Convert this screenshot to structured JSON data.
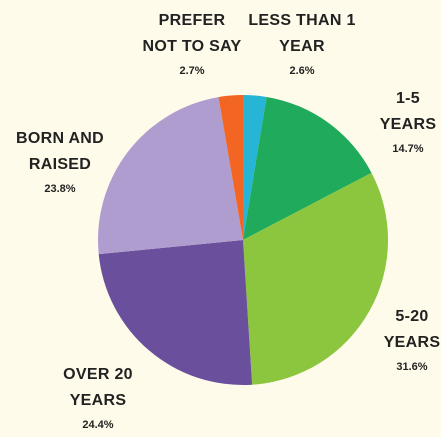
{
  "chart_data": {
    "type": "pie",
    "categories": [
      "LESS THAN 1 YEAR",
      "1-5 YEARS",
      "5-20 YEARS",
      "OVER 20 YEARS",
      "BORN AND RAISED",
      "PREFER NOT TO SAY"
    ],
    "values": [
      2.6,
      14.7,
      31.6,
      24.4,
      23.8,
      2.7
    ],
    "value_labels": [
      "2.6%",
      "14.7%",
      "31.6%",
      "24.4%",
      "23.8%",
      "2.7%"
    ],
    "colors": [
      "#27b5d5",
      "#1fab5b",
      "#8cc63f",
      "#6a4f9c",
      "#b09dcf",
      "#f26522"
    ]
  }
}
